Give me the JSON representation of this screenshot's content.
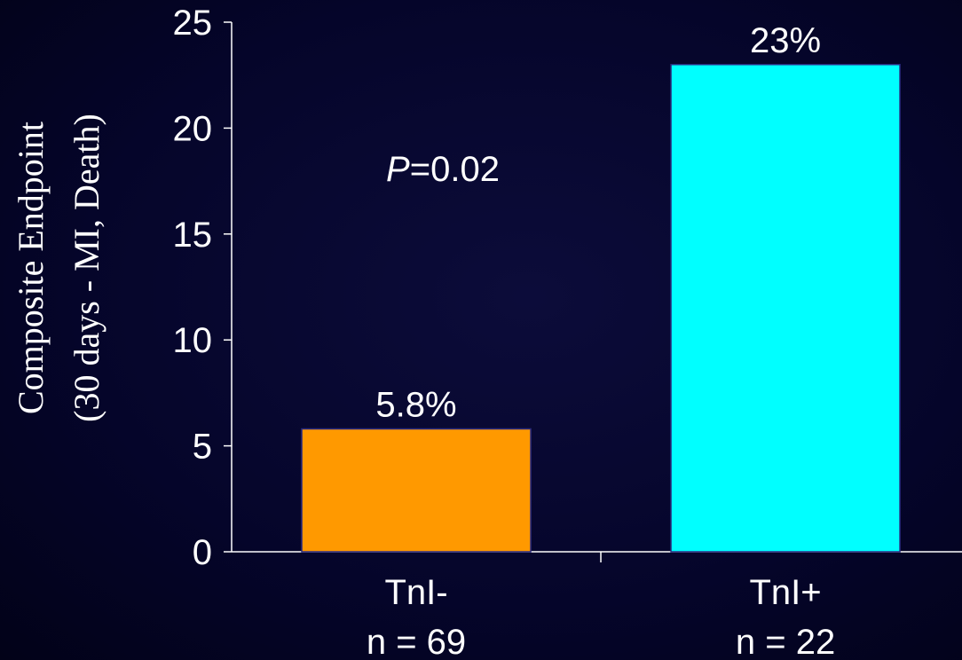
{
  "chart_data": {
    "type": "bar",
    "categories": [
      "TnI-",
      "TnI+"
    ],
    "category_sublabels": [
      "n = 69",
      "n = 22"
    ],
    "values": [
      5.8,
      23
    ],
    "value_labels": [
      "5.8%",
      "23%"
    ],
    "bar_colors": [
      "#ff9900",
      "#00ffff"
    ],
    "ylabel_lines": [
      "Composite Endpoint",
      "(30 days  - MI, Death)"
    ],
    "ylim": [
      0,
      25
    ],
    "yticks": [
      0,
      5,
      10,
      15,
      20,
      25
    ],
    "annotation": {
      "italic": "P",
      "rest": "=0.02"
    },
    "grid": false,
    "axis_color": "#ffffff",
    "background": "#05052a"
  }
}
